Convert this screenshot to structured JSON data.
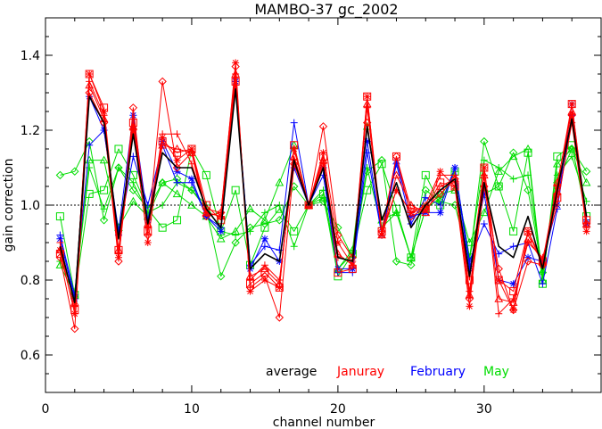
{
  "chart_data": {
    "type": "line",
    "title": "MAMBO-37 gc_2002",
    "xlabel": "channel number",
    "ylabel": "gain correction",
    "xlim": [
      0,
      38
    ],
    "ylim": [
      0.5,
      1.5
    ],
    "x_ticks": [
      "0",
      "10",
      "20",
      "30"
    ],
    "y_ticks": [
      "0.6",
      "0.8",
      "1.0",
      "1.2",
      "1.4"
    ],
    "reference_line": 1.0,
    "grid": false,
    "legend": {
      "placement": "bottom-right",
      "items": [
        {
          "label": "average",
          "color": "#000000"
        },
        {
          "label": "Januray",
          "color": "#ff0000"
        },
        {
          "label": "February",
          "color": "#0000ff"
        },
        {
          "label": "May",
          "color": "#00dd00"
        }
      ]
    },
    "channels": [
      1,
      2,
      3,
      4,
      5,
      6,
      7,
      8,
      9,
      10,
      11,
      12,
      13,
      14,
      15,
      16,
      17,
      18,
      19,
      20,
      21,
      22,
      23,
      24,
      25,
      26,
      27,
      28,
      29,
      30,
      31,
      32,
      33,
      34,
      35,
      36,
      37
    ],
    "series": [
      {
        "color": "#ff0000",
        "marker": "star",
        "values": [
          0.88,
          0.71,
          1.35,
          1.25,
          0.86,
          1.2,
          0.9,
          1.18,
          1.12,
          1.15,
          0.98,
          0.97,
          1.38,
          0.77,
          0.8,
          0.78,
          1.15,
          1.0,
          1.14,
          0.9,
          0.84,
          1.29,
          0.92,
          1.04,
          0.98,
          1.0,
          1.09,
          1.05,
          0.73,
          1.1,
          0.8,
          0.72,
          0.93,
          0.84,
          1.05,
          1.27,
          0.93
        ]
      },
      {
        "color": "#ff0000",
        "marker": "diamond",
        "values": [
          0.86,
          0.67,
          1.3,
          1.22,
          0.85,
          1.26,
          0.92,
          1.33,
          1.1,
          1.14,
          0.97,
          0.98,
          1.37,
          0.78,
          0.81,
          0.7,
          1.11,
          1.0,
          1.21,
          0.92,
          0.86,
          1.22,
          0.93,
          1.13,
          0.97,
          0.99,
          1.03,
          1.07,
          0.75,
          1.05,
          0.83,
          0.72,
          0.85,
          0.84,
          1.03,
          1.24,
          0.95
        ]
      },
      {
        "color": "#ff0000",
        "marker": "square",
        "values": [
          0.87,
          0.72,
          1.35,
          1.26,
          0.88,
          1.22,
          0.93,
          1.17,
          1.14,
          1.15,
          1.0,
          0.96,
          1.33,
          0.79,
          0.82,
          0.78,
          1.16,
          1.0,
          1.13,
          0.82,
          0.83,
          1.29,
          0.93,
          1.13,
          0.99,
          0.99,
          1.06,
          1.05,
          0.8,
          1.1,
          0.8,
          0.77,
          0.93,
          0.85,
          1.02,
          1.27,
          0.96
        ]
      },
      {
        "color": "#ff0000",
        "marker": "plus",
        "values": [
          0.9,
          0.73,
          1.33,
          1.24,
          0.87,
          1.23,
          0.94,
          1.19,
          1.19,
          1.11,
          0.99,
          0.98,
          1.35,
          0.8,
          0.84,
          0.8,
          1.12,
          1.0,
          1.11,
          0.86,
          0.85,
          1.26,
          0.93,
          1.04,
          0.98,
          0.99,
          1.08,
          1.08,
          0.77,
          1.08,
          0.71,
          0.75,
          0.9,
          0.86,
          1.0,
          1.22,
          0.94
        ]
      },
      {
        "color": "#ff0000",
        "marker": "triangle",
        "values": [
          0.88,
          0.74,
          1.32,
          1.23,
          0.88,
          1.21,
          0.95,
          1.16,
          1.15,
          1.14,
          0.98,
          0.97,
          1.35,
          0.81,
          0.83,
          0.79,
          1.13,
          1.0,
          1.12,
          0.87,
          0.84,
          1.27,
          0.92,
          1.08,
          1.0,
          0.98,
          1.05,
          1.07,
          0.76,
          1.08,
          0.75,
          0.74,
          0.91,
          0.85,
          1.06,
          1.25,
          0.95
        ]
      },
      {
        "color": "#0000ff",
        "marker": "star",
        "values": [
          0.91,
          0.75,
          1.29,
          1.2,
          0.93,
          1.24,
          0.96,
          1.17,
          1.09,
          1.07,
          0.97,
          0.93,
          1.33,
          0.83,
          0.91,
          0.85,
          1.1,
          1.0,
          1.1,
          0.83,
          0.83,
          1.17,
          0.92,
          1.12,
          0.97,
          0.98,
          0.98,
          1.1,
          0.83,
          1.03,
          0.8,
          0.79,
          0.86,
          0.85,
          1.0,
          1.27,
          0.95
        ]
      },
      {
        "color": "#0000ff",
        "marker": "plus",
        "values": [
          0.92,
          0.76,
          1.16,
          1.2,
          0.92,
          1.13,
          1.0,
          1.16,
          1.06,
          1.06,
          0.97,
          0.94,
          1.33,
          0.84,
          0.89,
          0.88,
          1.22,
          1.0,
          1.08,
          0.82,
          0.82,
          1.14,
          0.92,
          1.11,
          0.95,
          1.02,
          1.0,
          1.1,
          0.85,
          0.95,
          0.87,
          0.89,
          0.9,
          0.79,
          0.99,
          1.24,
          0.96
        ]
      },
      {
        "color": "#00dd00",
        "marker": "diamond",
        "values": [
          1.08,
          1.09,
          1.17,
          0.96,
          1.1,
          1.04,
          0.99,
          1.06,
          1.07,
          1.04,
          0.99,
          0.81,
          0.9,
          0.94,
          0.95,
          0.96,
          1.05,
          1.0,
          1.01,
          0.94,
          0.86,
          1.09,
          1.12,
          0.85,
          0.84,
          1.04,
          1.01,
          1.0,
          0.85,
          1.17,
          1.05,
          1.14,
          1.04,
          0.82,
          1.06,
          1.15,
          1.09
        ]
      },
      {
        "color": "#00dd00",
        "marker": "square",
        "values": [
          0.97,
          0.76,
          1.03,
          1.04,
          1.15,
          1.08,
          0.99,
          0.94,
          0.96,
          1.15,
          1.08,
          0.93,
          1.04,
          0.84,
          0.94,
          0.99,
          0.93,
          1.0,
          1.03,
          0.81,
          0.87,
          1.04,
          1.11,
          0.99,
          0.86,
          1.08,
          1.0,
          1.09,
          0.86,
          1.03,
          1.05,
          0.93,
          1.14,
          0.79,
          1.13,
          1.16,
          0.97
        ]
      },
      {
        "color": "#00dd00",
        "marker": "triangle",
        "values": [
          0.84,
          0.76,
          1.12,
          1.12,
          0.94,
          1.01,
          0.97,
          1.06,
          1.03,
          1.0,
          0.97,
          0.91,
          0.93,
          0.99,
          0.96,
          1.06,
          1.16,
          1.0,
          1.02,
          0.83,
          0.88,
          1.21,
          0.96,
          0.98,
          0.86,
          0.99,
          1.03,
          1.04,
          0.9,
          0.98,
          1.09,
          1.13,
          1.15,
          0.8,
          1.11,
          1.15,
          1.06
        ]
      },
      {
        "color": "#00dd00",
        "marker": "plus",
        "values": [
          0.85,
          0.77,
          1.1,
          0.99,
          1.1,
          1.06,
          0.98,
          1.0,
          1.06,
          1.04,
          1.0,
          0.93,
          0.92,
          0.93,
          0.98,
          1.0,
          0.89,
          1.0,
          1.04,
          0.83,
          0.87,
          1.1,
          0.94,
          0.98,
          0.86,
          0.99,
          1.02,
          1.09,
          0.86,
          1.12,
          1.1,
          1.07,
          1.08,
          0.82,
          1.08,
          1.13,
          1.01
        ]
      },
      {
        "color": "#000000",
        "marker": "none",
        "values": [
          0.89,
          0.74,
          1.29,
          1.22,
          0.91,
          1.19,
          0.95,
          1.14,
          1.1,
          1.1,
          0.99,
          0.94,
          1.31,
          0.83,
          0.87,
          0.85,
          1.12,
          1.0,
          1.1,
          0.86,
          0.85,
          1.21,
          0.96,
          1.06,
          0.94,
          1.0,
          1.04,
          1.07,
          0.81,
          1.06,
          0.89,
          0.86,
          0.97,
          0.83,
          1.04,
          1.23,
          0.97
        ]
      }
    ]
  }
}
